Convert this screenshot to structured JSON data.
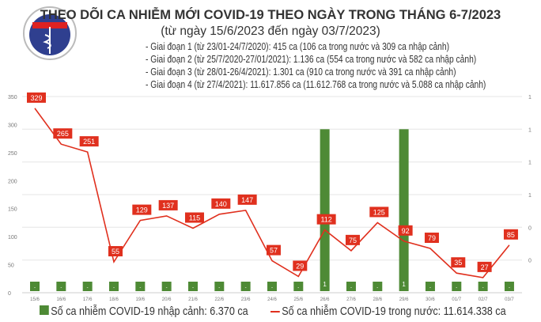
{
  "header": {
    "title": "THEO DÕI CA NHIỄM MỚI COVID-19 THEO NGÀY TRONG THÁNG 6-7/2023",
    "subtitle": "(từ ngày 15/6/2023 đến ngày 03/7/2023)",
    "phases": [
      "- Giai đoạn 1 (từ 23/01-24/7/2020): 415 ca (106 ca trong nước và 309 ca nhập cảnh)",
      "- Giai đoạn 2 (từ 25/7/2020-27/01/2021): 1.136 ca (554 ca trong nước và 582 ca nhập cảnh)",
      "- Giai đoạn 3 (từ 28/01-26/4/2021): 1.301 ca (910 ca trong nước và 391 ca nhập cảnh)",
      "- Giai đoạn 4 (từ 27/4/2021): 11.617.856 ca (11.612.768 ca trong nước và 5.088 ca nhập cảnh)"
    ]
  },
  "logo": {
    "top_text": "BỘ Y TẾ",
    "bottom_text": "MINISTRY OF HEALTH"
  },
  "chart_data": {
    "type": "bar+line",
    "categories": [
      "15/6",
      "16/6",
      "17/6",
      "18/6",
      "19/6",
      "20/6",
      "21/6",
      "22/6",
      "23/6",
      "24/6",
      "25/6",
      "26/6",
      "27/6",
      "28/6",
      "29/6",
      "30/6",
      "01/7",
      "02/7",
      "03/7"
    ],
    "series": [
      {
        "name": "Số ca nhiễm COVID-19 nhập cảnh: 6.370 ca",
        "type": "bar",
        "axis": "right",
        "color": "#4e8a35",
        "values": [
          0,
          0,
          0,
          0,
          0,
          0,
          0,
          0,
          0,
          0,
          0,
          1,
          0,
          0,
          1,
          0,
          0,
          0,
          0
        ]
      },
      {
        "name": "Số ca nhiễm COVID-19 trong nước: 11.614.338 ca",
        "type": "line",
        "axis": "left",
        "color": "#e0301e",
        "values": [
          329,
          265,
          251,
          55,
          129,
          137,
          115,
          140,
          147,
          57,
          29,
          112,
          75,
          125,
          92,
          79,
          35,
          27,
          85
        ]
      }
    ],
    "left_axis": {
      "ylim": [
        0,
        350
      ],
      "ticks": [
        "0",
        "50",
        "100",
        "150",
        "200",
        "250",
        "300",
        "350"
      ]
    },
    "right_axis": {
      "ticks": [
        "0",
        "0",
        "1",
        "1",
        "1",
        "1"
      ]
    },
    "grid": true,
    "legend": "bottom"
  }
}
